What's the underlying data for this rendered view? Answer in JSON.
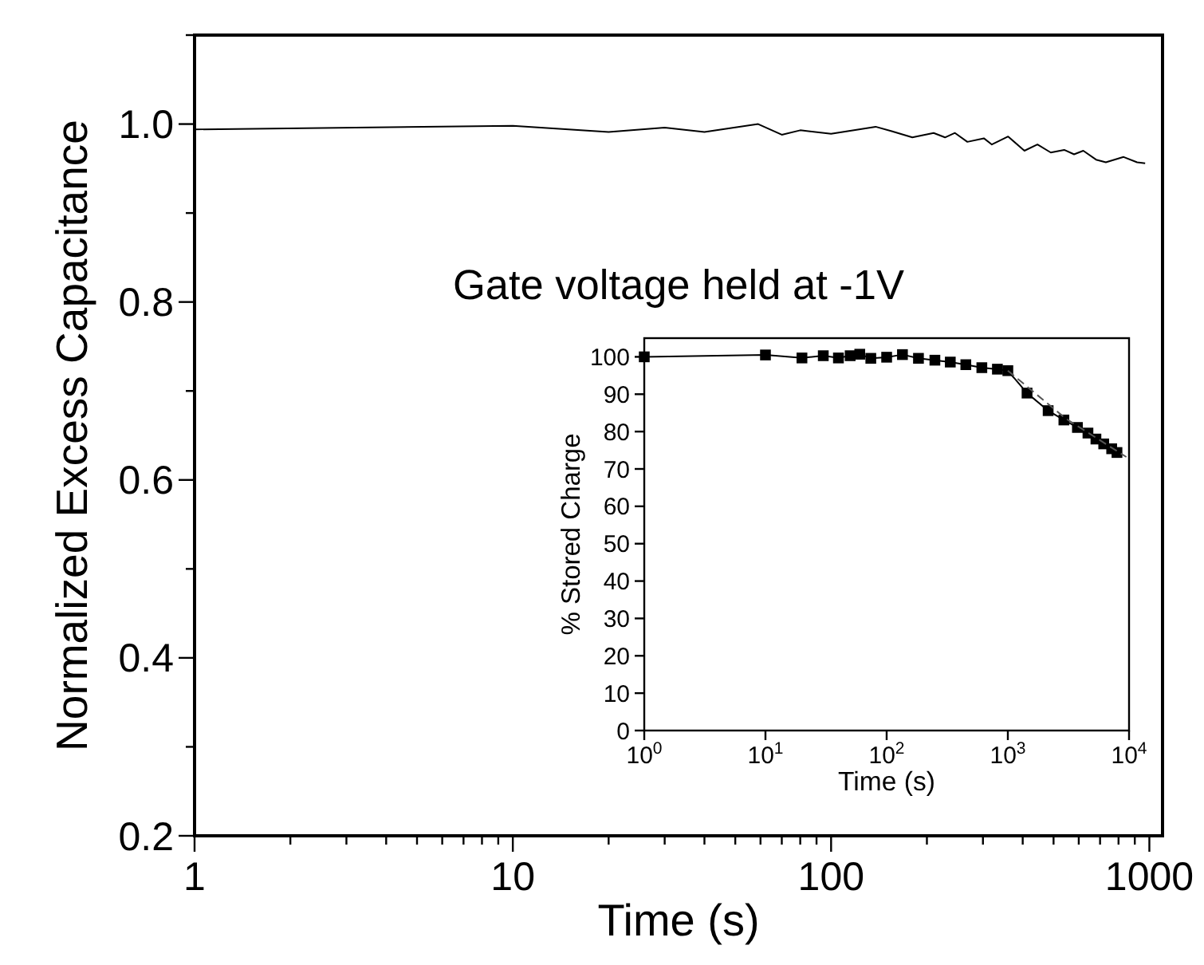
{
  "chart_data": [
    {
      "type": "line",
      "xlabel": "Time (s)",
      "ylabel": "Normalized Excess Capacitance",
      "annotations": [
        "Gate voltage held at -1V"
      ],
      "log": "x",
      "xlim": [
        1,
        1100
      ],
      "ylim": [
        0.2,
        1.1
      ],
      "xticks": [
        1,
        {
          "value": 2,
          "label": null
        },
        {
          "value": 3,
          "label": null
        },
        {
          "value": 4,
          "label": null
        },
        {
          "value": 5,
          "label": null
        },
        {
          "value": 6,
          "label": null
        },
        {
          "value": 7,
          "label": null
        },
        {
          "value": 8,
          "label": null
        },
        {
          "value": 9,
          "label": null
        },
        10,
        {
          "value": 20,
          "label": null
        },
        {
          "value": 30,
          "label": null
        },
        {
          "value": 40,
          "label": null
        },
        {
          "value": 50,
          "label": null
        },
        {
          "value": 60,
          "label": null
        },
        {
          "value": 70,
          "label": null
        },
        {
          "value": 80,
          "label": null
        },
        {
          "value": 90,
          "label": null
        },
        100,
        {
          "value": 200,
          "label": null
        },
        {
          "value": 300,
          "label": null
        },
        {
          "value": 400,
          "label": null
        },
        {
          "value": 500,
          "label": null
        },
        {
          "value": 600,
          "label": null
        },
        {
          "value": 700,
          "label": null
        },
        {
          "value": 800,
          "label": null
        },
        {
          "value": 900,
          "label": null
        },
        1000
      ],
      "yticks": [
        {
          "value": 0.2,
          "label": "0.2"
        },
        {
          "value": 0.3,
          "label": null
        },
        {
          "value": 0.4,
          "label": "0.4"
        },
        {
          "value": 0.5,
          "label": null
        },
        {
          "value": 0.6,
          "label": "0.6"
        },
        {
          "value": 0.7,
          "label": null
        },
        {
          "value": 0.8,
          "label": "0.8"
        },
        {
          "value": 0.9,
          "label": null
        },
        {
          "value": 1.0,
          "label": "1.0"
        },
        {
          "value": 1.1,
          "label": null
        }
      ],
      "series": [
        {
          "color": "#000000",
          "x": [
            1,
            10,
            20,
            30,
            40,
            59,
            70,
            80,
            100,
            138,
            155,
            180,
            210,
            228,
            245,
            268,
            302,
            320,
            360,
            405,
            445,
            490,
            540,
            580,
            620,
            680,
            730,
            830,
            915,
            970
          ],
          "values": [
            0.994,
            0.998,
            0.991,
            0.996,
            0.991,
            1.0,
            0.988,
            0.993,
            0.989,
            0.997,
            0.992,
            0.985,
            0.99,
            0.985,
            0.99,
            0.98,
            0.984,
            0.977,
            0.986,
            0.97,
            0.977,
            0.968,
            0.971,
            0.966,
            0.97,
            0.96,
            0.957,
            0.963,
            0.957,
            0.956
          ]
        }
      ]
    },
    {
      "type": "line",
      "xlabel": "Time (s)",
      "ylabel": "% Stored Charge",
      "log": "x",
      "xlim": [
        1,
        10000
      ],
      "ylim": [
        0,
        105
      ],
      "xticks": [
        {
          "value": 1,
          "label": "10$^{0}$"
        },
        {
          "value": 10,
          "label": "10$^{1}$"
        },
        {
          "value": 100,
          "label": "10$^{2}$"
        },
        {
          "value": 1000,
          "label": "10$^{3}$"
        },
        {
          "value": 10000,
          "label": "10$^{4}$"
        }
      ],
      "yticks": [
        0,
        10,
        20,
        30,
        40,
        50,
        60,
        70,
        80,
        90,
        100
      ],
      "series": [
        {
          "color": "#000000",
          "marker": "square",
          "x": [
            1,
            10,
            20,
            30,
            40,
            50,
            60,
            74,
            100,
            135,
            183,
            250,
            335,
            450,
            610,
            820,
            1000,
            1440,
            2150,
            2900,
            3750,
            4580,
            5330,
            6180,
            7190,
            7950
          ],
          "values": [
            100,
            100.5,
            99.7,
            100.3,
            99.7,
            100.3,
            100.7,
            99.6,
            99.9,
            100.6,
            99.6,
            99.1,
            98.6,
            97.9,
            97.1,
            96.7,
            96.3,
            90.3,
            85.6,
            83.1,
            81.1,
            79.6,
            78,
            76.7,
            75.4,
            74.4
          ]
        },
        {
          "type": "line",
          "color": "#555555",
          "line_style": "dashed",
          "x": [
            1000,
            3000,
            9500
          ],
          "values": [
            96.3,
            83.5,
            73.2
          ]
        }
      ]
    }
  ]
}
